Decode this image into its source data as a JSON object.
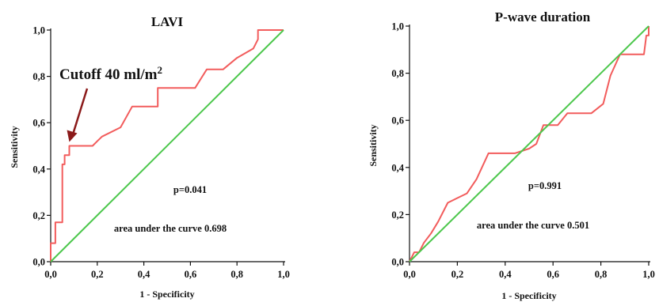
{
  "chart_data": [
    {
      "type": "line",
      "title": "LAVI",
      "xlabel": "1 - Specificity",
      "ylabel": "Sensitivity",
      "xlim": [
        0,
        1
      ],
      "ylim": [
        0,
        1
      ],
      "x_ticks": [
        "0,0",
        "0,2",
        "0,4",
        "0,6",
        "0,8",
        "1,0"
      ],
      "y_ticks": [
        "0,0",
        "0,2",
        "0,4",
        "0,6",
        "0,8",
        "1,0"
      ],
      "series": [
        {
          "color": "#f25c5c",
          "style": "step",
          "x": [
            0,
            0,
            0.02,
            0.02,
            0.05,
            0.05,
            0.06,
            0.06,
            0.08,
            0.08,
            0.18,
            0.2,
            0.22,
            0.3,
            0.35,
            0.46,
            0.46,
            0.62,
            0.67,
            0.74,
            0.8,
            0.87,
            0.89,
            0.89,
            1.0
          ],
          "y": [
            0,
            0.08,
            0.08,
            0.17,
            0.17,
            0.42,
            0.42,
            0.46,
            0.46,
            0.5,
            0.5,
            0.52,
            0.54,
            0.58,
            0.67,
            0.67,
            0.75,
            0.75,
            0.83,
            0.83,
            0.88,
            0.92,
            0.96,
            1.0,
            1.0
          ]
        },
        {
          "color": "#4cc74c",
          "style": "reference",
          "x": [
            0,
            1
          ],
          "y": [
            0,
            1
          ]
        }
      ],
      "annotations": {
        "p": "p=0.041",
        "auc": "area under the curve 0.698",
        "cutoff_prefix": "Cutoff 40 ml/m",
        "cutoff_sup": "2",
        "cutoff_point": [
          0.08,
          0.5
        ]
      },
      "arrow_color": "#8b1a1a"
    },
    {
      "type": "line",
      "title": "P-wave duration",
      "xlabel": "1 - Specificity",
      "ylabel": "Sensitivity",
      "xlim": [
        0,
        1
      ],
      "ylim": [
        0,
        1
      ],
      "x_ticks": [
        "0,0",
        "0,2",
        "0,4",
        "0,6",
        "0,8",
        "1,0"
      ],
      "y_ticks": [
        "0,0",
        "0,2",
        "0,4",
        "0,6",
        "0,8",
        "1,0"
      ],
      "series": [
        {
          "color": "#f25c5c",
          "style": "step",
          "x": [
            0,
            0.02,
            0.04,
            0.06,
            0.09,
            0.12,
            0.16,
            0.2,
            0.24,
            0.28,
            0.33,
            0.39,
            0.44,
            0.5,
            0.53,
            0.56,
            0.6,
            0.62,
            0.66,
            0.76,
            0.81,
            0.84,
            0.88,
            0.98,
            0.99,
            1.0,
            1.0
          ],
          "y": [
            0,
            0.04,
            0.04,
            0.08,
            0.12,
            0.17,
            0.25,
            0.27,
            0.29,
            0.35,
            0.46,
            0.46,
            0.46,
            0.48,
            0.5,
            0.58,
            0.58,
            0.58,
            0.63,
            0.63,
            0.67,
            0.79,
            0.88,
            0.88,
            0.96,
            0.96,
            1.0
          ]
        },
        {
          "color": "#4cc74c",
          "style": "reference",
          "x": [
            0,
            1
          ],
          "y": [
            0,
            1
          ]
        }
      ],
      "annotations": {
        "p": "p=0.991",
        "auc": "area under the curve 0.501"
      }
    }
  ]
}
